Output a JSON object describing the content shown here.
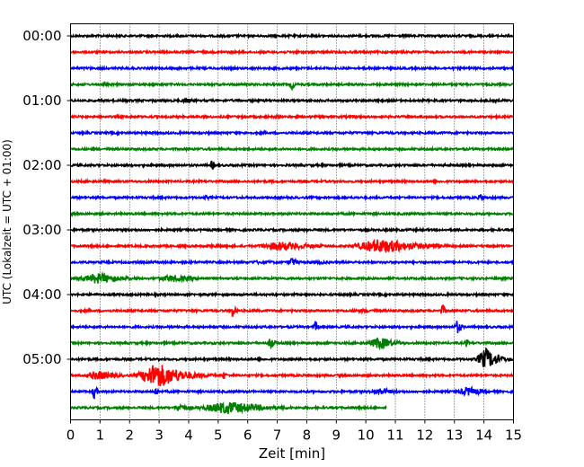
{
  "chart_data": {
    "type": "line",
    "title": "",
    "xlabel": "Zeit  [min]",
    "ylabel": "UTC (Lokalzeit = UTC + 01:00)",
    "xlim": [
      0,
      15
    ],
    "x_ticks": [
      "0",
      "1",
      "2",
      "3",
      "4",
      "5",
      "6",
      "7",
      "8",
      "9",
      "10",
      "11",
      "12",
      "13",
      "14",
      "15"
    ],
    "y_tick_labels": [
      "00:00",
      "01:00",
      "02:00",
      "03:00",
      "04:00",
      "05:00"
    ],
    "grid": "vertical dotted",
    "trace_colors": [
      "#000000",
      "#ff0000",
      "#0000ff",
      "#008000"
    ],
    "trace_interval_min": 15,
    "traces": [
      {
        "start": "00:00",
        "end_min": 15,
        "events": []
      },
      {
        "start": "00:15",
        "end_min": 15,
        "events": []
      },
      {
        "start": "00:30",
        "end_min": 15,
        "events": []
      },
      {
        "start": "00:45",
        "end_min": 15,
        "events": [
          {
            "t": 7.5,
            "amp": 8,
            "dur": 0.08
          }
        ]
      },
      {
        "start": "01:00",
        "end_min": 15,
        "events": [
          {
            "t": 3.9,
            "amp": 3,
            "dur": 0.3
          }
        ]
      },
      {
        "start": "01:15",
        "end_min": 15,
        "events": [
          {
            "t": 7.0,
            "amp": 2,
            "dur": 0.3
          }
        ]
      },
      {
        "start": "01:30",
        "end_min": 15,
        "events": []
      },
      {
        "start": "01:45",
        "end_min": 15,
        "events": []
      },
      {
        "start": "02:00",
        "end_min": 15,
        "events": [
          {
            "t": 4.8,
            "amp": 6,
            "dur": 0.1
          }
        ]
      },
      {
        "start": "02:15",
        "end_min": 15,
        "events": []
      },
      {
        "start": "02:30",
        "end_min": 15,
        "events": [
          {
            "t": 4.6,
            "amp": 2,
            "dur": 0.4
          },
          {
            "t": 13.9,
            "amp": 4,
            "dur": 0.2
          }
        ]
      },
      {
        "start": "02:45",
        "end_min": 15,
        "events": []
      },
      {
        "start": "03:00",
        "end_min": 15,
        "events": [
          {
            "t": 8.0,
            "amp": 3,
            "dur": 0.1
          }
        ]
      },
      {
        "start": "03:15",
        "end_min": 15,
        "events": [
          {
            "t": 5.0,
            "amp": 2,
            "dur": 1.0
          },
          {
            "t": 7.2,
            "amp": 5,
            "dur": 1.3
          },
          {
            "t": 10.6,
            "amp": 8,
            "dur": 1.5
          }
        ]
      },
      {
        "start": "03:30",
        "end_min": 15,
        "events": [
          {
            "t": 6.5,
            "amp": 2,
            "dur": 1.0
          },
          {
            "t": 7.5,
            "amp": 6,
            "dur": 0.2
          },
          {
            "t": 8.5,
            "amp": 2,
            "dur": 0.5
          }
        ]
      },
      {
        "start": "03:45",
        "end_min": 15,
        "events": [
          {
            "t": 1.0,
            "amp": 6,
            "dur": 1.0
          },
          {
            "t": 3.5,
            "amp": 4,
            "dur": 1.0
          }
        ]
      },
      {
        "start": "04:00",
        "end_min": 15,
        "events": []
      },
      {
        "start": "04:15",
        "end_min": 15,
        "events": [
          {
            "t": 5.5,
            "amp": 9,
            "dur": 0.1
          },
          {
            "t": 10.0,
            "amp": 2,
            "dur": 1.0
          },
          {
            "t": 12.6,
            "amp": 8,
            "dur": 0.1
          }
        ]
      },
      {
        "start": "04:30",
        "end_min": 15,
        "events": [
          {
            "t": 8.3,
            "amp": 7,
            "dur": 0.1
          },
          {
            "t": 13.1,
            "amp": 8,
            "dur": 0.15
          }
        ]
      },
      {
        "start": "04:45",
        "end_min": 15,
        "events": [
          {
            "t": 6.8,
            "amp": 8,
            "dur": 0.15
          },
          {
            "t": 10.5,
            "amp": 7,
            "dur": 0.6
          },
          {
            "t": 13.4,
            "amp": 5,
            "dur": 0.1
          }
        ]
      },
      {
        "start": "05:00",
        "end_min": 15,
        "events": [
          {
            "t": 14.1,
            "amp": 12,
            "dur": 0.5
          }
        ]
      },
      {
        "start": "05:15",
        "end_min": 15,
        "events": [
          {
            "t": 1.0,
            "amp": 5,
            "dur": 0.8
          },
          {
            "t": 3.0,
            "amp": 14,
            "dur": 1.0
          },
          {
            "t": 5.2,
            "amp": 5,
            "dur": 0.1
          }
        ]
      },
      {
        "start": "05:30",
        "end_min": 15,
        "events": [
          {
            "t": 0.8,
            "amp": 10,
            "dur": 0.1
          },
          {
            "t": 2.9,
            "amp": 6,
            "dur": 0.1
          },
          {
            "t": 10.5,
            "amp": 4,
            "dur": 0.6
          },
          {
            "t": 13.5,
            "amp": 5,
            "dur": 0.6
          }
        ]
      },
      {
        "start": "05:45",
        "end_min": 10.7,
        "events": [
          {
            "t": 3.7,
            "amp": 5,
            "dur": 0.3
          },
          {
            "t": 5.4,
            "amp": 7,
            "dur": 1.5
          }
        ]
      }
    ]
  }
}
